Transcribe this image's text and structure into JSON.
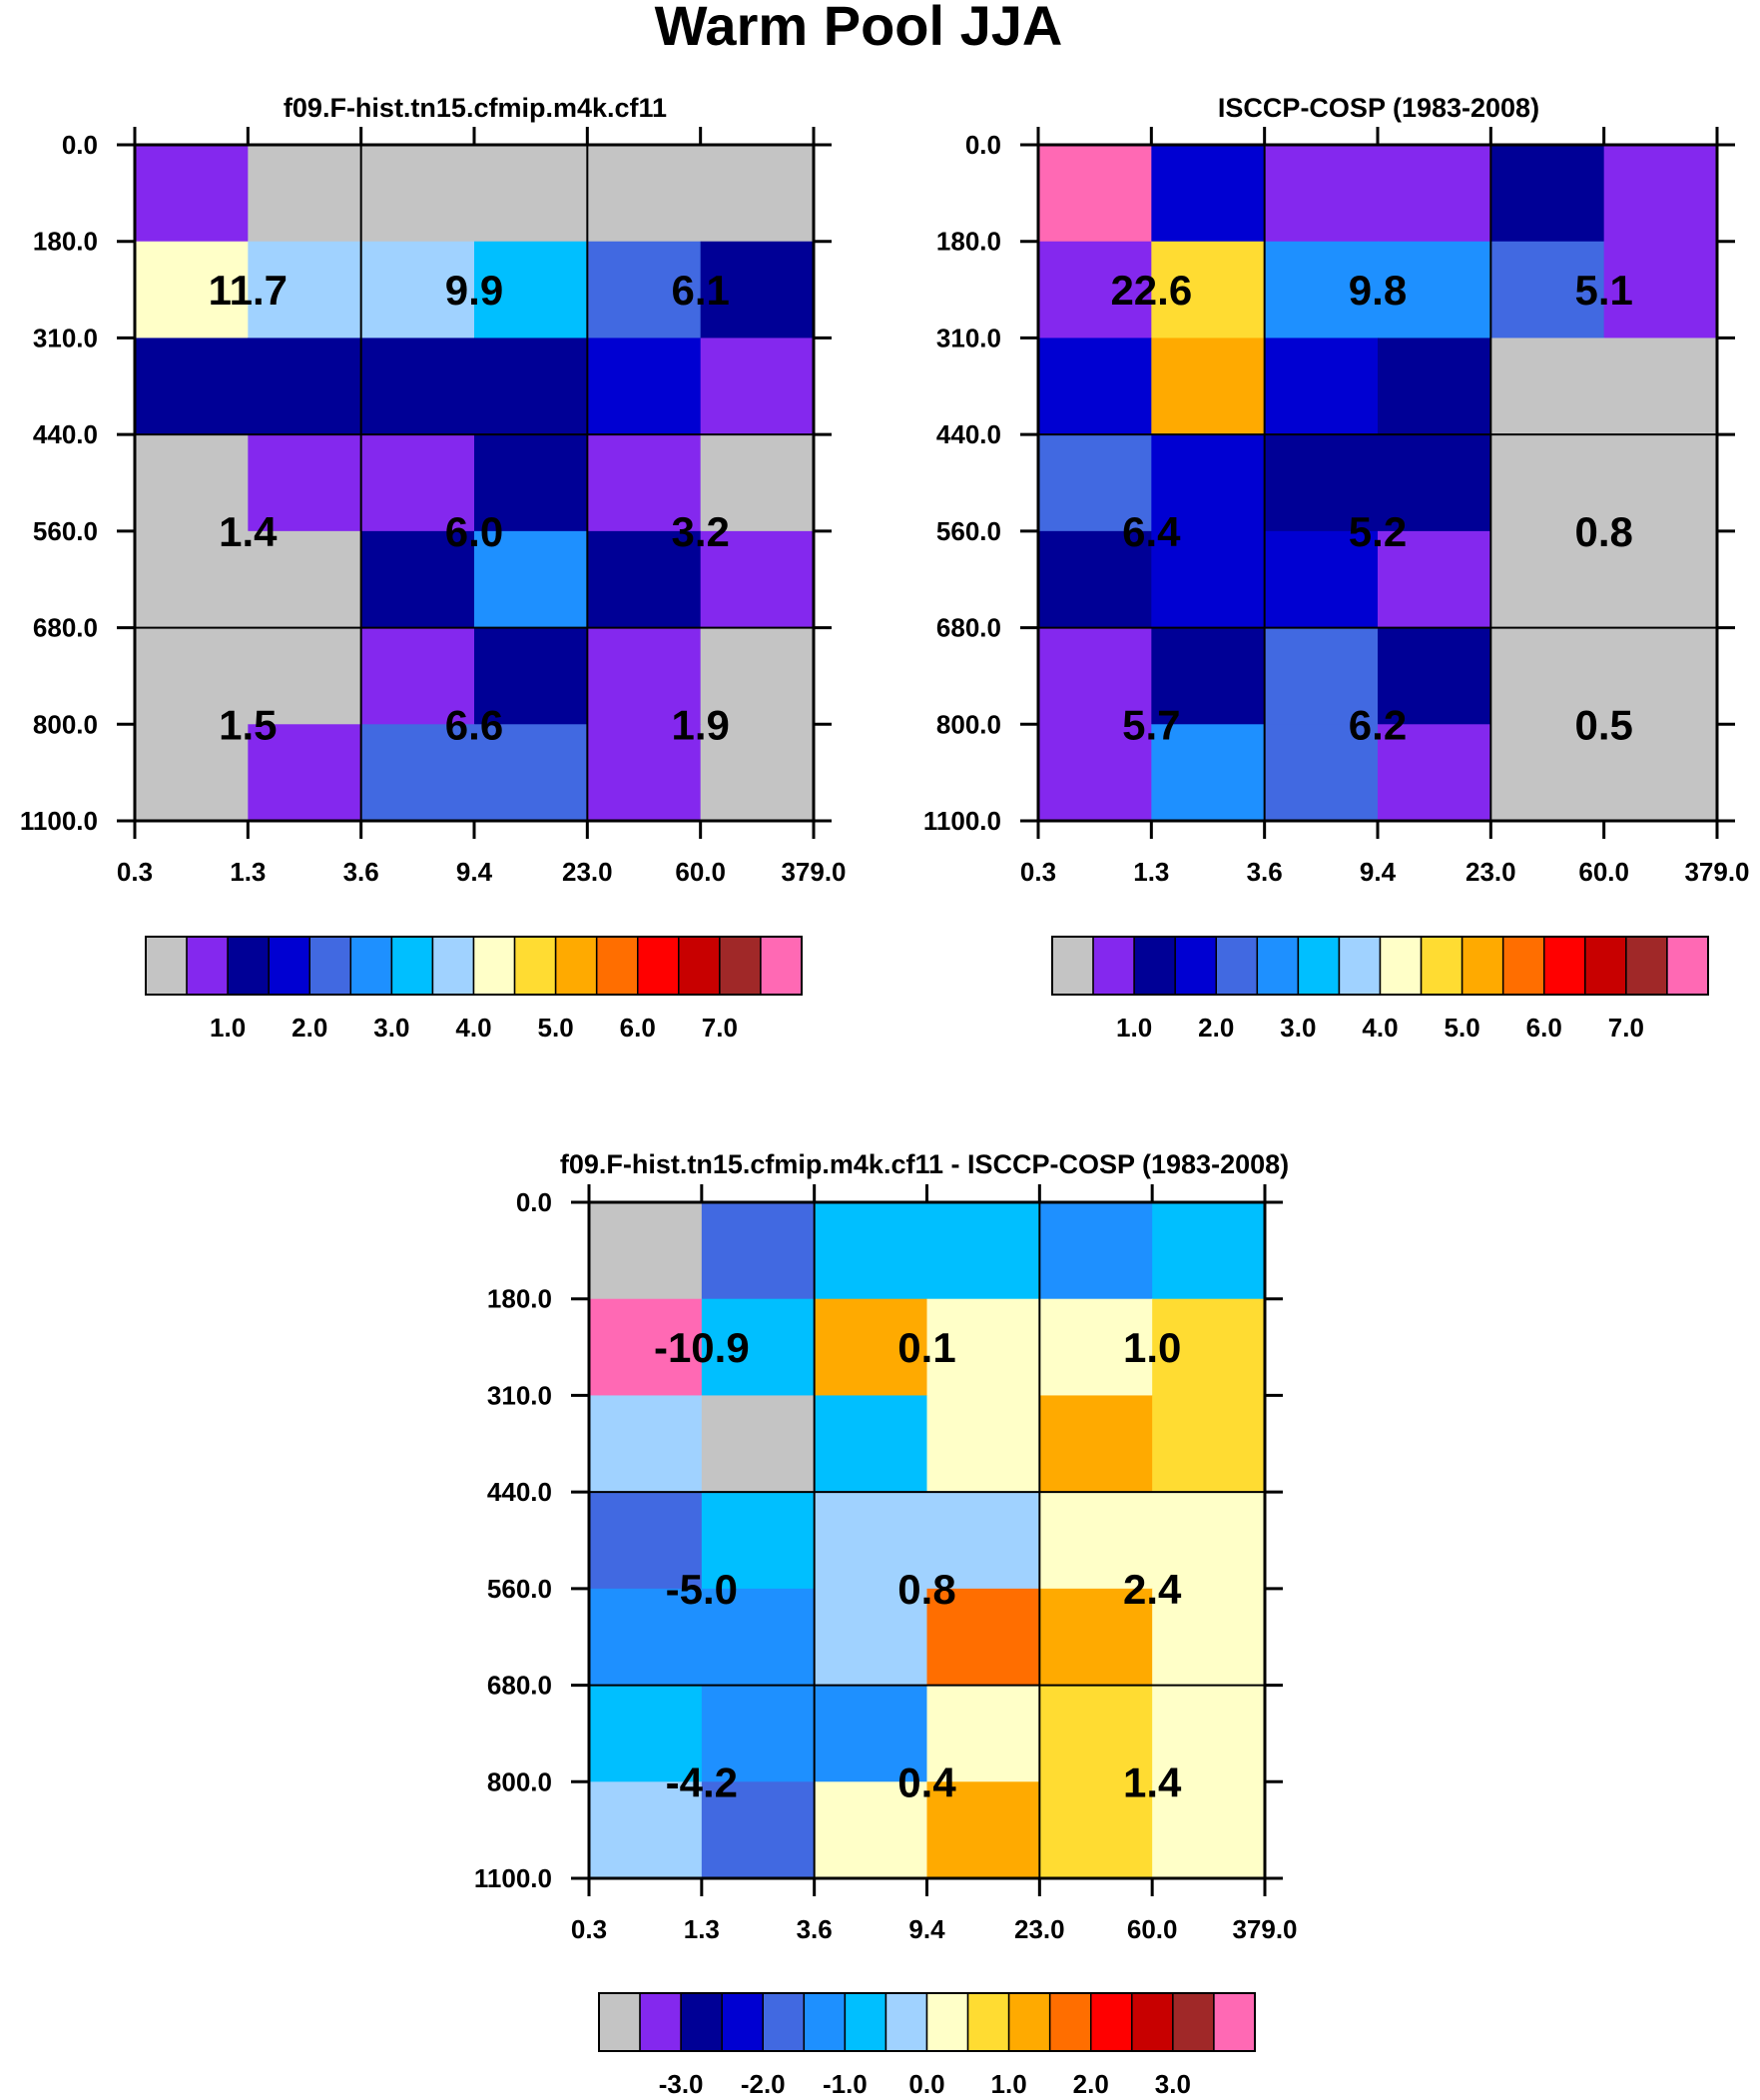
{
  "title": "Warm Pool JJA",
  "x_ticks": [
    "0.3",
    "1.3",
    "3.6",
    "9.4",
    "23.0",
    "60.0",
    "379.0"
  ],
  "y_ticks": [
    "0.0",
    "180.0",
    "310.0",
    "440.0",
    "560.0",
    "680.0",
    "800.0",
    "1100.0"
  ],
  "palette": [
    "#c4c4c4",
    "#8428ee",
    "#000096",
    "#0000d2",
    "#4169e1",
    "#1e90ff",
    "#00bfff",
    "#a0d2ff",
    "#ffffc8",
    "#ffdc32",
    "#ffaa00",
    "#ff6e00",
    "#ff0000",
    "#c80000",
    "#a02828",
    "#ff69b4"
  ],
  "chart_data": [
    {
      "type": "heatmap",
      "title": "f09.F-hist.tn15.cfmip.m4k.cf11",
      "xlabel": "",
      "ylabel": "",
      "cells": [
        [
          1,
          0,
          0,
          0,
          0,
          0
        ],
        [
          8,
          7,
          7,
          6,
          4,
          2
        ],
        [
          2,
          2,
          2,
          2,
          3,
          1
        ],
        [
          0,
          1,
          1,
          2,
          1,
          0
        ],
        [
          0,
          0,
          2,
          5,
          2,
          1
        ],
        [
          0,
          0,
          1,
          2,
          1,
          0
        ],
        [
          0,
          1,
          4,
          4,
          1,
          0
        ]
      ],
      "block_labels": [
        "11.7",
        "9.9",
        "6.1",
        "1.4",
        "6.0",
        "3.2",
        "1.5",
        "6.6",
        "1.9"
      ],
      "colorbar_labels": [
        "1.0",
        "2.0",
        "3.0",
        "4.0",
        "5.0",
        "6.0",
        "7.0"
      ]
    },
    {
      "type": "heatmap",
      "title": "ISCCP-COSP (1983-2008)",
      "xlabel": "",
      "ylabel": "",
      "cells": [
        [
          15,
          3,
          1,
          1,
          2,
          1
        ],
        [
          1,
          9,
          5,
          5,
          4,
          1
        ],
        [
          3,
          10,
          3,
          2,
          0,
          0
        ],
        [
          4,
          3,
          2,
          2,
          0,
          0
        ],
        [
          2,
          3,
          3,
          1,
          0,
          0
        ],
        [
          1,
          2,
          4,
          2,
          0,
          0
        ],
        [
          1,
          5,
          4,
          1,
          0,
          0
        ]
      ],
      "block_labels": [
        "22.6",
        "9.8",
        "5.1",
        "6.4",
        "5.2",
        "0.8",
        "5.7",
        "6.2",
        "0.5"
      ],
      "colorbar_labels": [
        "1.0",
        "2.0",
        "3.0",
        "4.0",
        "5.0",
        "6.0",
        "7.0"
      ]
    },
    {
      "type": "heatmap",
      "title": "f09.F-hist.tn15.cfmip.m4k.cf11 - ISCCP-COSP (1983-2008)",
      "xlabel": "",
      "ylabel": "",
      "cells": [
        [
          0,
          4,
          6,
          6,
          5,
          6
        ],
        [
          15,
          6,
          10,
          8,
          8,
          9
        ],
        [
          7,
          0,
          6,
          8,
          10,
          9
        ],
        [
          4,
          6,
          7,
          7,
          8,
          8
        ],
        [
          5,
          5,
          7,
          11,
          10,
          8
        ],
        [
          6,
          5,
          5,
          8,
          9,
          8
        ],
        [
          7,
          4,
          8,
          10,
          9,
          8
        ]
      ],
      "block_labels": [
        "-10.9",
        "0.1",
        "1.0",
        "-5.0",
        "0.8",
        "2.4",
        "-4.2",
        "0.4",
        "1.4"
      ],
      "colorbar_labels": [
        "-3.0",
        "-2.0",
        "-1.0",
        "0.0",
        "1.0",
        "2.0",
        "3.0"
      ]
    }
  ]
}
